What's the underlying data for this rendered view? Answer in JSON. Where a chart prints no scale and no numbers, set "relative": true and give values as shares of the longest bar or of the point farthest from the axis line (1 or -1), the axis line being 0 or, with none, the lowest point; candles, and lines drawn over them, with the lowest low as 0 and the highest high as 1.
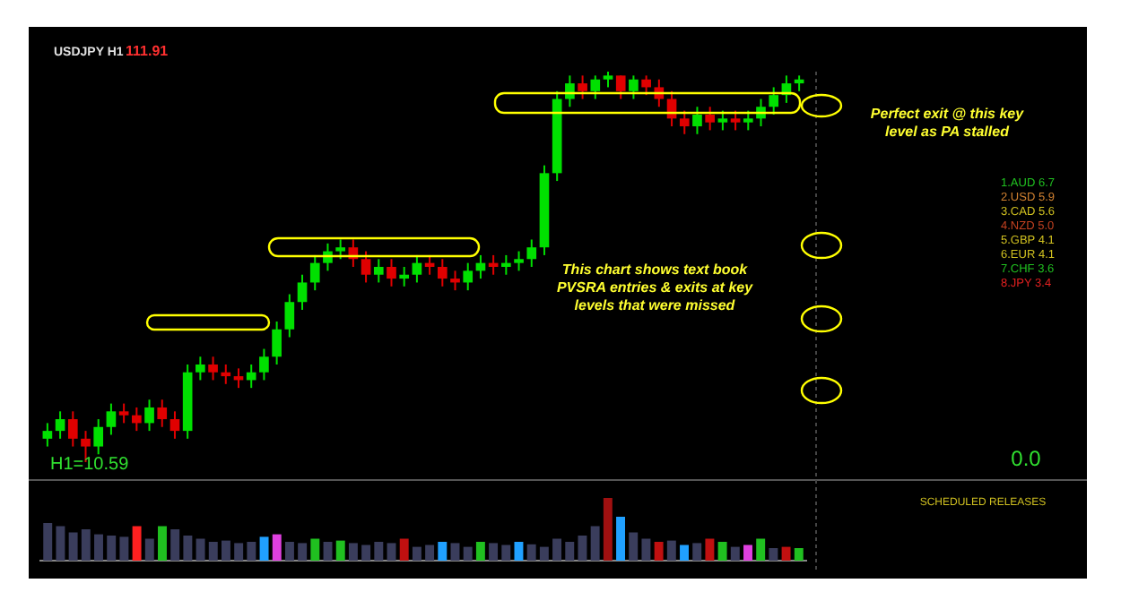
{
  "chart_data": [
    {
      "type": "candlestick",
      "title": "USDJPY H1",
      "subtitle": "111.91",
      "relative": true,
      "categories": [
        null,
        null,
        null,
        null,
        null,
        null,
        null,
        null,
        null,
        null,
        null,
        null,
        null,
        null,
        null,
        null,
        null,
        null,
        null,
        null,
        null,
        null,
        null,
        null,
        null,
        null,
        null,
        null,
        null,
        null,
        null,
        null,
        null,
        null,
        null,
        null,
        null,
        null,
        null,
        null,
        null,
        null,
        null,
        null,
        null,
        null,
        null,
        null,
        null,
        null,
        null,
        null,
        null,
        null,
        null,
        null,
        null,
        null,
        null,
        null
      ],
      "ohlc": [
        [
          0.06,
          0.1,
          0.04,
          0.08
        ],
        [
          0.08,
          0.13,
          0.06,
          0.11
        ],
        [
          0.11,
          0.13,
          0.04,
          0.06
        ],
        [
          0.06,
          0.08,
          0,
          0.04
        ],
        [
          0.04,
          0.11,
          0.02,
          0.09
        ],
        [
          0.09,
          0.15,
          0.07,
          0.13
        ],
        [
          0.13,
          0.15,
          0.1,
          0.12
        ],
        [
          0.12,
          0.14,
          0.08,
          0.1
        ],
        [
          0.1,
          0.16,
          0.08,
          0.14
        ],
        [
          0.14,
          0.16,
          0.09,
          0.11
        ],
        [
          0.11,
          0.13,
          0.06,
          0.08
        ],
        [
          0.08,
          0.25,
          0.06,
          0.23
        ],
        [
          0.23,
          0.27,
          0.21,
          0.25
        ],
        [
          0.25,
          0.27,
          0.21,
          0.23
        ],
        [
          0.23,
          0.25,
          0.2,
          0.22
        ],
        [
          0.22,
          0.24,
          0.19,
          0.21
        ],
        [
          0.21,
          0.25,
          0.19,
          0.23
        ],
        [
          0.23,
          0.29,
          0.21,
          0.27
        ],
        [
          0.27,
          0.36,
          0.25,
          0.34
        ],
        [
          0.34,
          0.43,
          0.32,
          0.41
        ],
        [
          0.41,
          0.48,
          0.39,
          0.46
        ],
        [
          0.46,
          0.53,
          0.44,
          0.51
        ],
        [
          0.51,
          0.56,
          0.49,
          0.54
        ],
        [
          0.54,
          0.57,
          0.52,
          0.55
        ],
        [
          0.55,
          0.57,
          0.5,
          0.52
        ],
        [
          0.52,
          0.54,
          0.46,
          0.48
        ],
        [
          0.48,
          0.52,
          0.46,
          0.5
        ],
        [
          0.5,
          0.52,
          0.45,
          0.47
        ],
        [
          0.47,
          0.5,
          0.45,
          0.48
        ],
        [
          0.48,
          0.53,
          0.46,
          0.51
        ],
        [
          0.51,
          0.53,
          0.48,
          0.5
        ],
        [
          0.5,
          0.52,
          0.45,
          0.47
        ],
        [
          0.47,
          0.49,
          0.44,
          0.46
        ],
        [
          0.46,
          0.51,
          0.44,
          0.49
        ],
        [
          0.49,
          0.53,
          0.47,
          0.51
        ],
        [
          0.51,
          0.53,
          0.48,
          0.5
        ],
        [
          0.5,
          0.53,
          0.48,
          0.51
        ],
        [
          0.51,
          0.54,
          0.49,
          0.52
        ],
        [
          0.52,
          0.57,
          0.5,
          0.55
        ],
        [
          0.55,
          0.76,
          0.53,
          0.74
        ],
        [
          0.74,
          0.95,
          0.72,
          0.93
        ],
        [
          0.93,
          0.99,
          0.91,
          0.97
        ],
        [
          0.97,
          0.99,
          0.93,
          0.95
        ],
        [
          0.95,
          0.99,
          0.93,
          0.98
        ],
        [
          0.98,
          1,
          0.96,
          0.99
        ],
        [
          0.99,
          0.99,
          0.93,
          0.95
        ],
        [
          0.95,
          0.99,
          0.93,
          0.98
        ],
        [
          0.98,
          0.99,
          0.94,
          0.96
        ],
        [
          0.96,
          0.98,
          0.91,
          0.93
        ],
        [
          0.93,
          0.95,
          0.86,
          0.88
        ],
        [
          0.88,
          0.9,
          0.84,
          0.86
        ],
        [
          0.86,
          0.91,
          0.84,
          0.89
        ],
        [
          0.89,
          0.91,
          0.85,
          0.87
        ],
        [
          0.87,
          0.9,
          0.85,
          0.88
        ],
        [
          0.88,
          0.9,
          0.85,
          0.87
        ],
        [
          0.87,
          0.9,
          0.85,
          0.88
        ],
        [
          0.88,
          0.93,
          0.86,
          0.91
        ],
        [
          0.91,
          0.96,
          0.89,
          0.94
        ],
        [
          0.94,
          0.99,
          0.92,
          0.97
        ],
        [
          0.97,
          0.99,
          0.95,
          0.98
        ]
      ],
      "annotations": [
        "Perfect exit @ this key level as PA stalled",
        "This chart shows text book PVSRA entries & exits at key levels that were missed",
        "H1=10.59",
        "0.0",
        "1.AUD 6.7",
        "2.USD 5.9",
        "3.CAD 5.6",
        "4.NZD 5.0",
        "5.GBP 4.1",
        "6.EUR 4.1",
        "7.CHF 3.6",
        "8.JPY 3.4"
      ]
    },
    {
      "type": "bar",
      "relative": true,
      "categories": [
        null,
        null,
        null,
        null,
        null,
        null,
        null,
        null,
        null,
        null,
        null,
        null,
        null,
        null,
        null,
        null,
        null,
        null,
        null,
        null,
        null,
        null,
        null,
        null,
        null,
        null,
        null,
        null,
        null,
        null,
        null,
        null,
        null,
        null,
        null,
        null,
        null,
        null,
        null,
        null,
        null,
        null,
        null,
        null,
        null,
        null,
        null,
        null,
        null,
        null,
        null,
        null,
        null,
        null,
        null,
        null,
        null,
        null,
        null,
        null
      ],
      "values": [
        0.6,
        0.55,
        0.45,
        0.5,
        0.42,
        0.4,
        0.38,
        0.55,
        0.35,
        0.55,
        0.5,
        0.4,
        0.35,
        0.3,
        0.32,
        0.28,
        0.3,
        0.38,
        0.42,
        0.3,
        0.28,
        0.35,
        0.3,
        0.32,
        0.28,
        0.25,
        0.3,
        0.28,
        0.35,
        0.22,
        0.25,
        0.3,
        0.28,
        0.22,
        0.3,
        0.28,
        0.25,
        0.3,
        0.26,
        0.22,
        0.35,
        0.3,
        0.4,
        0.55,
        1,
        0.7,
        0.45,
        0.35,
        0.3,
        0.32,
        0.25,
        0.28,
        0.35,
        0.3,
        0.22,
        0.25,
        0.35,
        0.2,
        0.22,
        0.2
      ],
      "colors": [
        "#3a3d5c",
        "#3a3d5c",
        "#3a3d5c",
        "#3a3d5c",
        "#3a3d5c",
        "#3a3d5c",
        "#3a3d5c",
        "#ff2020",
        "#3a3d5c",
        "#20c020",
        "#3a3d5c",
        "#3a3d5c",
        "#3a3d5c",
        "#3a3d5c",
        "#3a3d5c",
        "#3a3d5c",
        "#3a3d5c",
        "#20a0ff",
        "#e040e0",
        "#3a3d5c",
        "#3a3d5c",
        "#20c020",
        "#3a3d5c",
        "#20c020",
        "#3a3d5c",
        "#3a3d5c",
        "#3a3d5c",
        "#3a3d5c",
        "#c01010",
        "#3a3d5c",
        "#3a3d5c",
        "#20a0ff",
        "#3a3d5c",
        "#3a3d5c",
        "#20c020",
        "#3a3d5c",
        "#3a3d5c",
        "#20a0ff",
        "#3a3d5c",
        "#3a3d5c",
        "#3a3d5c",
        "#3a3d5c",
        "#3a3d5c",
        "#3a3d5c",
        "#a01010",
        "#20a0ff",
        "#3a3d5c",
        "#3a3d5c",
        "#c01010",
        "#3a3d5c",
        "#20a0ff",
        "#3a3d5c",
        "#c01010",
        "#20c020",
        "#3a3d5c",
        "#e040e0",
        "#20c020",
        "#3a3d5c",
        "#c01010",
        "#20c020"
      ],
      "annotations": [
        "SCHEDULED RELEASES"
      ]
    }
  ]
}
